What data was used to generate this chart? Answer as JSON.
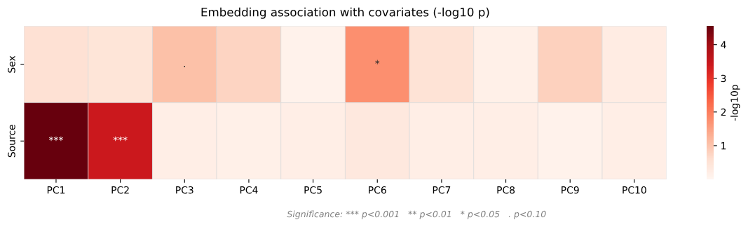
{
  "chart_data": {
    "type": "heatmap",
    "title": "Embedding association with covariates (-log10 p)",
    "categories": [
      "PC1",
      "PC2",
      "PC3",
      "PC4",
      "PC5",
      "PC6",
      "PC7",
      "PC8",
      "PC9",
      "PC10"
    ],
    "y_categories": [
      "Sex",
      "Source"
    ],
    "cells": [
      [
        0.55,
        0.45,
        1.05,
        0.75,
        0.1,
        1.75,
        0.5,
        0.15,
        0.8,
        0.25
      ],
      [
        4.55,
        3.4,
        0.2,
        0.15,
        0.2,
        0.35,
        0.2,
        0.2,
        0.1,
        0.2
      ]
    ],
    "cell_labels": [
      [
        null,
        null,
        ".",
        null,
        null,
        "*",
        null,
        null,
        null,
        null
      ],
      [
        "***",
        "***",
        null,
        null,
        null,
        null,
        null,
        null,
        null,
        null
      ]
    ],
    "clabel": "-log10p",
    "clim": [
      0,
      4.55
    ],
    "cticks": [
      1,
      2,
      3,
      4
    ],
    "annotations": [
      "Significance: *** p<0.001   ** p<0.01   * p<0.05   . p<0.10"
    ]
  }
}
